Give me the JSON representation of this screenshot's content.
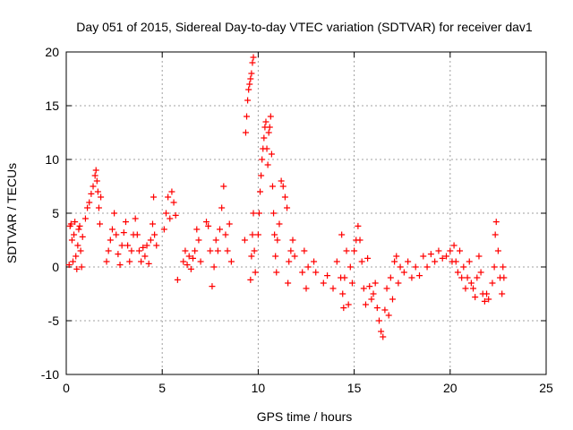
{
  "chart_data": {
    "type": "scatter",
    "title": "Day 051 of 2015, Sidereal Day-to-day VTEC variation (SDTVAR) for receiver dav1",
    "xlabel": "GPS time / hours",
    "ylabel": "SDTVAR / TECUs",
    "xlim": [
      0,
      25
    ],
    "ylim": [
      -10,
      20
    ],
    "xticks": [
      0,
      5,
      10,
      15,
      20,
      25
    ],
    "yticks": [
      -10,
      -5,
      0,
      5,
      10,
      15,
      20
    ],
    "xtick_labels": [
      "0",
      "5",
      "10",
      "15",
      "20",
      "25"
    ],
    "ytick_labels": [
      "-10",
      "-5",
      "0",
      "5",
      "10",
      "15",
      "20"
    ],
    "grid": true,
    "marker": "+",
    "color": "#ff0000",
    "series": [
      {
        "name": "SDTVAR",
        "points": [
          [
            0.15,
            0.2
          ],
          [
            0.2,
            3.8
          ],
          [
            0.25,
            4.0
          ],
          [
            0.3,
            2.5
          ],
          [
            0.35,
            0.5
          ],
          [
            0.4,
            3.0
          ],
          [
            0.45,
            4.2
          ],
          [
            0.5,
            1.0
          ],
          [
            0.55,
            -0.2
          ],
          [
            0.6,
            2.0
          ],
          [
            0.65,
            3.5
          ],
          [
            0.7,
            3.8
          ],
          [
            0.75,
            1.5
          ],
          [
            0.8,
            0.0
          ],
          [
            0.85,
            2.8
          ],
          [
            1.0,
            4.5
          ],
          [
            1.1,
            5.5
          ],
          [
            1.2,
            6.0
          ],
          [
            1.3,
            6.8
          ],
          [
            1.4,
            7.5
          ],
          [
            1.5,
            8.5
          ],
          [
            1.55,
            9.0
          ],
          [
            1.6,
            8.0
          ],
          [
            1.65,
            7.0
          ],
          [
            1.7,
            5.5
          ],
          [
            1.75,
            4.0
          ],
          [
            1.8,
            6.5
          ],
          [
            2.1,
            0.5
          ],
          [
            2.2,
            1.5
          ],
          [
            2.3,
            2.5
          ],
          [
            2.4,
            3.5
          ],
          [
            2.5,
            5.0
          ],
          [
            2.6,
            3.0
          ],
          [
            2.7,
            1.2
          ],
          [
            2.8,
            0.2
          ],
          [
            2.9,
            2.0
          ],
          [
            3.0,
            3.2
          ],
          [
            3.1,
            4.2
          ],
          [
            3.2,
            2.0
          ],
          [
            3.3,
            0.5
          ],
          [
            3.4,
            1.5
          ],
          [
            3.5,
            3.0
          ],
          [
            3.6,
            4.5
          ],
          [
            3.7,
            3.0
          ],
          [
            3.8,
            1.5
          ],
          [
            3.9,
            0.5
          ],
          [
            4.0,
            1.8
          ],
          [
            4.1,
            1.0
          ],
          [
            4.2,
            2.0
          ],
          [
            4.3,
            0.3
          ],
          [
            4.4,
            2.5
          ],
          [
            4.5,
            4.0
          ],
          [
            4.55,
            6.5
          ],
          [
            4.6,
            3.0
          ],
          [
            4.7,
            2.0
          ],
          [
            5.1,
            3.5
          ],
          [
            5.2,
            5.0
          ],
          [
            5.3,
            6.5
          ],
          [
            5.4,
            4.5
          ],
          [
            5.5,
            7.0
          ],
          [
            5.6,
            6.0
          ],
          [
            5.7,
            4.8
          ],
          [
            5.8,
            -1.2
          ],
          [
            6.1,
            0.5
          ],
          [
            6.2,
            1.5
          ],
          [
            6.3,
            0.2
          ],
          [
            6.4,
            1.0
          ],
          [
            6.5,
            -0.2
          ],
          [
            6.6,
            0.8
          ],
          [
            6.7,
            1.5
          ],
          [
            6.8,
            3.5
          ],
          [
            6.9,
            2.5
          ],
          [
            7.0,
            0.5
          ],
          [
            7.3,
            4.2
          ],
          [
            7.4,
            3.8
          ],
          [
            7.5,
            1.5
          ],
          [
            7.6,
            -1.8
          ],
          [
            7.7,
            0.0
          ],
          [
            7.8,
            2.5
          ],
          [
            7.9,
            1.5
          ],
          [
            8.0,
            3.5
          ],
          [
            8.1,
            5.5
          ],
          [
            8.2,
            7.5
          ],
          [
            8.3,
            3.0
          ],
          [
            8.4,
            1.5
          ],
          [
            8.5,
            4.0
          ],
          [
            8.6,
            0.5
          ],
          [
            9.3,
            2.5
          ],
          [
            9.35,
            12.5
          ],
          [
            9.4,
            14.0
          ],
          [
            9.45,
            15.5
          ],
          [
            9.5,
            16.5
          ],
          [
            9.55,
            17.0
          ],
          [
            9.6,
            17.5
          ],
          [
            9.65,
            18.0
          ],
          [
            9.7,
            19.0
          ],
          [
            9.75,
            19.5
          ],
          [
            9.6,
            -1.2
          ],
          [
            9.65,
            1.0
          ],
          [
            9.7,
            3.0
          ],
          [
            9.75,
            5.0
          ],
          [
            9.8,
            1.5
          ],
          [
            9.85,
            -0.5
          ],
          [
            10.0,
            3.0
          ],
          [
            10.05,
            5.0
          ],
          [
            10.1,
            7.0
          ],
          [
            10.15,
            8.5
          ],
          [
            10.2,
            10.0
          ],
          [
            10.25,
            11.0
          ],
          [
            10.3,
            12.0
          ],
          [
            10.35,
            13.0
          ],
          [
            10.4,
            13.5
          ],
          [
            10.45,
            11.0
          ],
          [
            10.5,
            9.5
          ],
          [
            10.55,
            12.5
          ],
          [
            10.6,
            13.0
          ],
          [
            10.65,
            14.0
          ],
          [
            10.7,
            10.5
          ],
          [
            10.75,
            7.5
          ],
          [
            10.8,
            5.0
          ],
          [
            10.85,
            3.0
          ],
          [
            10.9,
            1.0
          ],
          [
            10.95,
            -0.5
          ],
          [
            11.0,
            2.5
          ],
          [
            11.1,
            4.0
          ],
          [
            11.2,
            8.0
          ],
          [
            11.3,
            7.5
          ],
          [
            11.4,
            6.5
          ],
          [
            11.5,
            5.5
          ],
          [
            11.55,
            -1.5
          ],
          [
            11.6,
            0.5
          ],
          [
            11.7,
            1.5
          ],
          [
            11.8,
            2.5
          ],
          [
            11.9,
            1.0
          ],
          [
            12.3,
            -0.5
          ],
          [
            12.4,
            1.5
          ],
          [
            12.5,
            -2.0
          ],
          [
            12.6,
            0.0
          ],
          [
            12.9,
            0.5
          ],
          [
            13.0,
            -0.5
          ],
          [
            13.4,
            -1.5
          ],
          [
            13.6,
            -0.8
          ],
          [
            13.9,
            -2.0
          ],
          [
            14.1,
            0.5
          ],
          [
            14.3,
            -1.0
          ],
          [
            14.35,
            3.0
          ],
          [
            14.4,
            -2.5
          ],
          [
            14.45,
            -3.8
          ],
          [
            14.5,
            -1.0
          ],
          [
            14.6,
            1.5
          ],
          [
            14.7,
            -3.5
          ],
          [
            14.8,
            0.0
          ],
          [
            14.9,
            -1.5
          ],
          [
            15.0,
            1.5
          ],
          [
            15.1,
            2.5
          ],
          [
            15.2,
            3.8
          ],
          [
            15.3,
            2.5
          ],
          [
            15.4,
            0.5
          ],
          [
            15.5,
            -2.0
          ],
          [
            15.6,
            -3.5
          ],
          [
            15.7,
            0.8
          ],
          [
            15.8,
            -1.8
          ],
          [
            15.9,
            -3.0
          ],
          [
            16.0,
            -2.5
          ],
          [
            16.1,
            -1.5
          ],
          [
            16.2,
            -3.8
          ],
          [
            16.3,
            -5.0
          ],
          [
            16.4,
            -6.0
          ],
          [
            16.5,
            -6.5
          ],
          [
            16.6,
            -4.0
          ],
          [
            16.7,
            -2.0
          ],
          [
            16.8,
            -4.5
          ],
          [
            16.9,
            -1.0
          ],
          [
            17.0,
            -3.0
          ],
          [
            17.1,
            0.5
          ],
          [
            17.2,
            1.0
          ],
          [
            17.3,
            -1.5
          ],
          [
            17.4,
            0.0
          ],
          [
            17.6,
            -0.5
          ],
          [
            17.8,
            0.5
          ],
          [
            18.0,
            -1.0
          ],
          [
            18.2,
            0.0
          ],
          [
            18.4,
            -0.8
          ],
          [
            18.6,
            1.0
          ],
          [
            18.8,
            0.0
          ],
          [
            19.0,
            1.2
          ],
          [
            19.2,
            0.5
          ],
          [
            19.4,
            1.5
          ],
          [
            19.6,
            0.8
          ],
          [
            19.8,
            1.0
          ],
          [
            20.0,
            1.5
          ],
          [
            20.1,
            0.5
          ],
          [
            20.2,
            2.0
          ],
          [
            20.3,
            0.5
          ],
          [
            20.4,
            -0.5
          ],
          [
            20.5,
            1.5
          ],
          [
            20.6,
            -1.0
          ],
          [
            20.7,
            0.0
          ],
          [
            20.8,
            -2.0
          ],
          [
            20.9,
            -1.0
          ],
          [
            21.0,
            0.5
          ],
          [
            21.1,
            -1.5
          ],
          [
            21.2,
            -2.0
          ],
          [
            21.3,
            -2.8
          ],
          [
            21.4,
            -1.0
          ],
          [
            21.5,
            1.0
          ],
          [
            21.6,
            -0.5
          ],
          [
            21.7,
            -2.5
          ],
          [
            21.8,
            -3.2
          ],
          [
            21.9,
            -2.5
          ],
          [
            22.0,
            -3.0
          ],
          [
            22.2,
            -1.5
          ],
          [
            22.3,
            0.0
          ],
          [
            22.35,
            3.0
          ],
          [
            22.4,
            4.2
          ],
          [
            22.5,
            1.5
          ],
          [
            22.6,
            -1.0
          ],
          [
            22.7,
            -2.5
          ],
          [
            22.75,
            0.0
          ],
          [
            22.8,
            -1.0
          ]
        ]
      }
    ]
  }
}
